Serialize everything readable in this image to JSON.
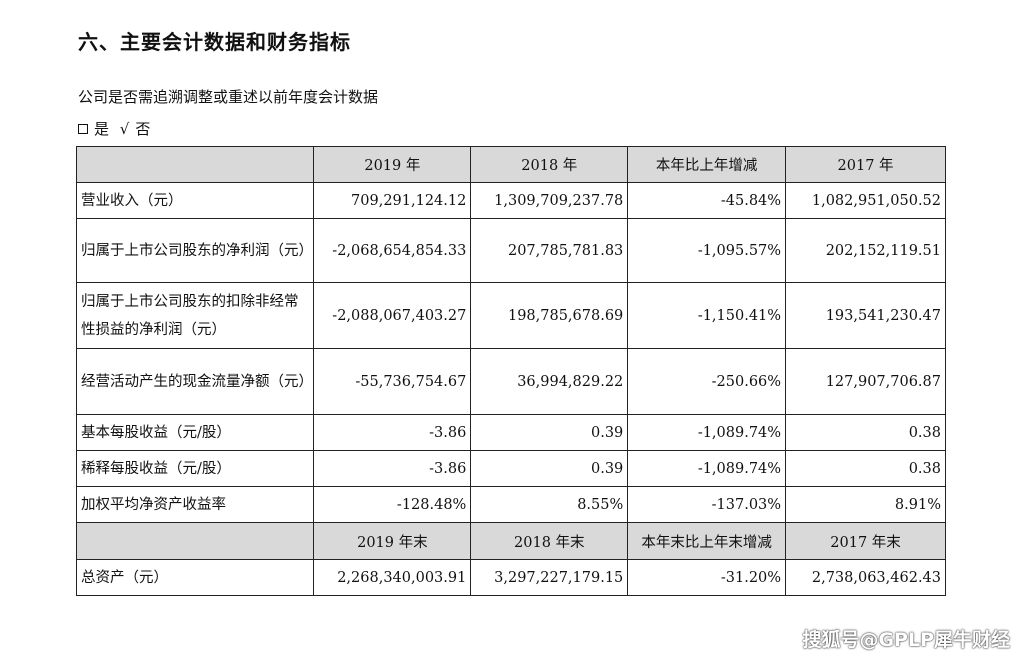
{
  "section_title": "六、主要会计数据和财务指标",
  "question": "公司是否需追溯调整或重述以前年度会计数据",
  "options": {
    "yes_label": "是",
    "check_mark": "√",
    "no_label": "否"
  },
  "table": {
    "headers": [
      "",
      "2019 年",
      "2018 年",
      "本年比上年增减",
      "2017 年"
    ],
    "rows": [
      [
        "营业收入（元）",
        "709,291,124.12",
        "1,309,709,237.78",
        "-45.84%",
        "1,082,951,050.52"
      ],
      [
        "归属于上市公司股东的净利润（元）",
        "-2,068,654,854.33",
        "207,785,781.83",
        "-1,095.57%",
        "202,152,119.51"
      ],
      [
        "归属于上市公司股东的扣除非经常性损益的净利润（元）",
        "-2,088,067,403.27",
        "198,785,678.69",
        "-1,150.41%",
        "193,541,230.47"
      ],
      [
        "经营活动产生的现金流量净额（元）",
        "-55,736,754.67",
        "36,994,829.22",
        "-250.66%",
        "127,907,706.87"
      ],
      [
        "基本每股收益（元/股）",
        "-3.86",
        "0.39",
        "-1,089.74%",
        "0.38"
      ],
      [
        "稀释每股收益（元/股）",
        "-3.86",
        "0.39",
        "-1,089.74%",
        "0.38"
      ],
      [
        "加权平均净资产收益率",
        "-128.48%",
        "8.55%",
        "-137.03%",
        "8.91%"
      ]
    ],
    "headers2": [
      "",
      "2019 年末",
      "2018 年末",
      "本年末比上年末增减",
      "2017 年末"
    ],
    "rows2": [
      [
        "总资产（元）",
        "2,268,340,003.91",
        "3,297,227,179.15",
        "-31.20%",
        "2,738,063,462.43"
      ]
    ]
  },
  "watermark": "搜狐号@GPLP犀牛财经"
}
